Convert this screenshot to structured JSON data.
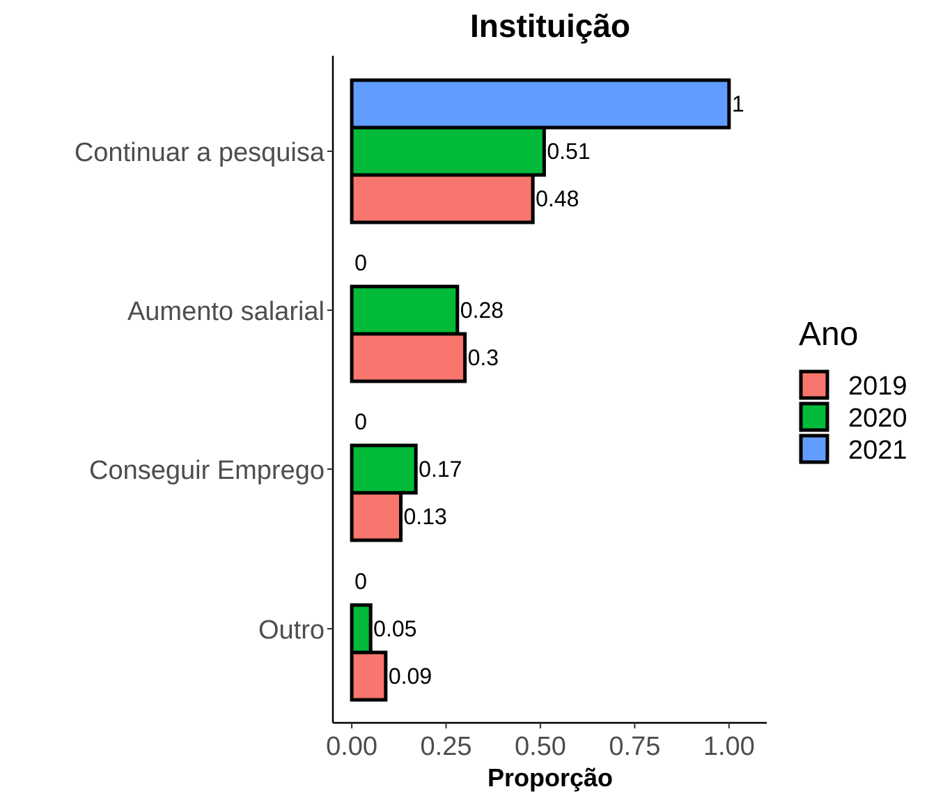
{
  "chart_data": {
    "type": "bar",
    "orientation": "horizontal",
    "title": "Instituição",
    "xlabel": "Proporção",
    "ylabel": "",
    "xlim": [
      -0.05,
      1.1
    ],
    "xticks": [
      0,
      0.25,
      0.5,
      0.75,
      1.0
    ],
    "xtick_labels": [
      "0.00",
      "0.25",
      "0.50",
      "0.75",
      "1.00"
    ],
    "grid": false,
    "categories": [
      "Continuar a pesquisa",
      "Aumento salarial",
      "Conseguir Emprego",
      "Outro"
    ],
    "legend": {
      "title": "Ano",
      "position": "right"
    },
    "series": [
      {
        "name": "2019",
        "color": "#F8766D",
        "values": [
          0.48,
          0.3,
          0.13,
          0.09
        ],
        "labels": [
          "0.48",
          "0.3",
          "0.13",
          "0.09"
        ]
      },
      {
        "name": "2020",
        "color": "#00BA38",
        "values": [
          0.51,
          0.28,
          0.17,
          0.05
        ],
        "labels": [
          "0.51",
          "0.28",
          "0.17",
          "0.05"
        ]
      },
      {
        "name": "2021",
        "color": "#619CFF",
        "values": [
          1,
          0,
          0,
          0
        ],
        "labels": [
          "1",
          "0",
          "0",
          "0"
        ]
      }
    ]
  }
}
